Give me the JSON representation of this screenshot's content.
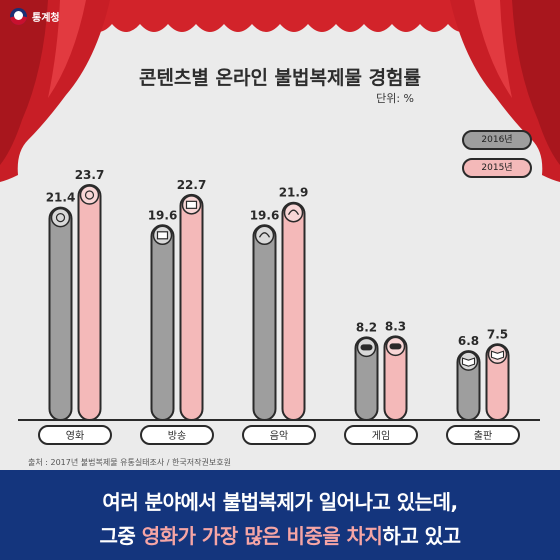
{
  "brand": {
    "name": "통계청"
  },
  "legend": {
    "y2016": "2016년",
    "y2015": "2015년"
  },
  "source": "출처 : 2017년 불법복제물 유통실태조사 / 한국저작권보호원",
  "banner": {
    "line1": "여러 분야에서 불법복제가 일어나고 있는데,",
    "line2_a": "그중 ",
    "line2_b": "영화가 가장 많은 비중을 차지",
    "line2_c": "하고 있고"
  },
  "colors": {
    "background": "#ebebeb",
    "bar_2016": "#9e9e9e",
    "bar_2015": "#f4b9b9",
    "outline": "#2a2a2a",
    "curtain": "#d2232a",
    "banner": "#14357d",
    "highlight": "#f6a5a5"
  },
  "chart_data": {
    "type": "bar",
    "title": "콘텐츠별 온라인 불법복제물 경험률",
    "unit": "단위: %",
    "categories": [
      "영화",
      "방송",
      "음악",
      "게임",
      "출판"
    ],
    "icons": [
      "film-reel-icon",
      "tv-icon",
      "headphones-icon",
      "gamepad-icon",
      "book-icon"
    ],
    "series": [
      {
        "name": "2016년",
        "values": [
          21.4,
          19.6,
          19.6,
          8.2,
          6.8
        ]
      },
      {
        "name": "2015년",
        "values": [
          23.7,
          22.7,
          21.9,
          8.3,
          7.5
        ]
      }
    ],
    "ylim": [
      0,
      25
    ],
    "legend_position": "right"
  }
}
